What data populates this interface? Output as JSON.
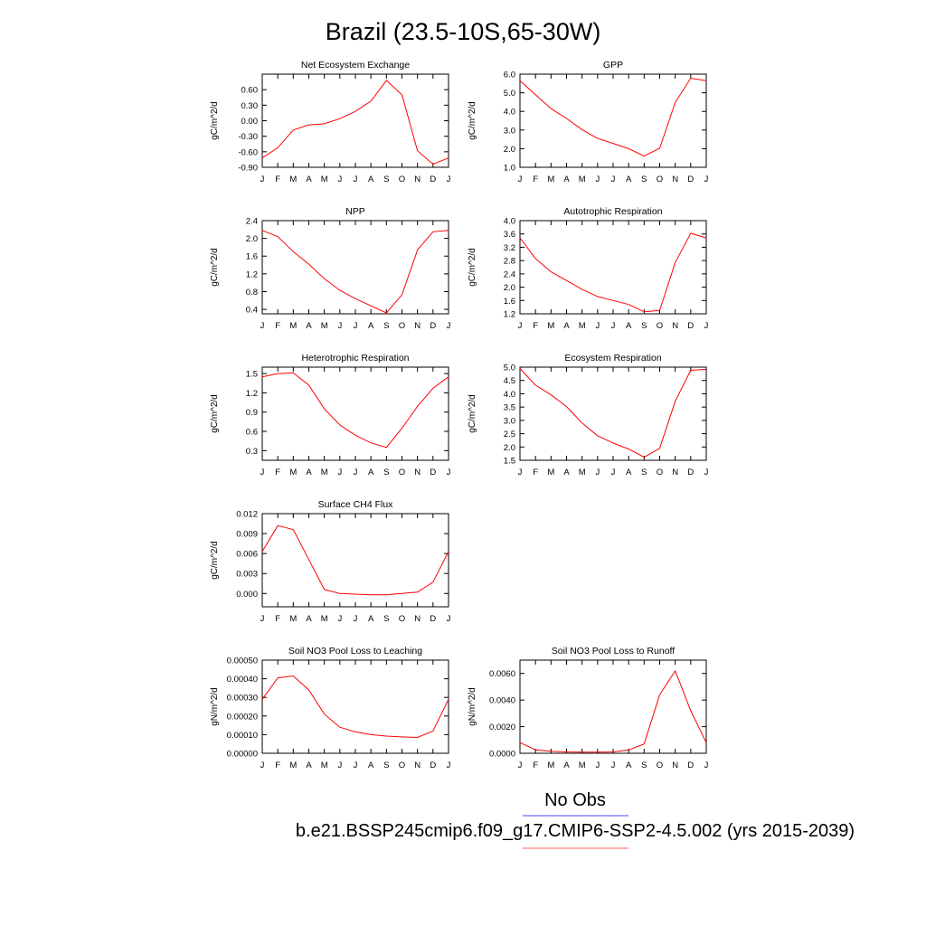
{
  "figure_title": "Brazil (23.5-10S,65-30W)",
  "legend": {
    "items": [
      {
        "label": "No Obs",
        "color": "#6b6bff"
      },
      {
        "label": "b.e21.BSSP245cmip6.f09_g17.CMIP6-SSP2-4.5.002 (yrs 2015-2039)",
        "color": "#ff7f7f"
      }
    ]
  },
  "colors": {
    "series": "#ff0000",
    "axis": "#000000"
  },
  "chart_data": [
    {
      "type": "line",
      "title": "Net Ecosystem Exchange",
      "ylabel": "gC/m^2/d",
      "x": [
        "J",
        "F",
        "M",
        "A",
        "M",
        "J",
        "J",
        "A",
        "S",
        "O",
        "N",
        "D",
        "J"
      ],
      "ylim": [
        -0.9,
        0.9
      ],
      "yticks": [
        -0.9,
        -0.6,
        -0.3,
        0.0,
        0.3,
        0.6
      ],
      "ytick_labels": [
        "-0.90",
        "-0.60",
        "-0.30",
        "0.00",
        "0.30",
        "0.60"
      ],
      "series": [
        {
          "values": [
            -0.72,
            -0.52,
            -0.18,
            -0.08,
            -0.06,
            0.04,
            0.18,
            0.38,
            0.78,
            0.5,
            -0.58,
            -0.84,
            -0.72
          ]
        }
      ]
    },
    {
      "type": "line",
      "title": "GPP",
      "ylabel": "gC/m^2/d",
      "x": [
        "J",
        "F",
        "M",
        "A",
        "M",
        "J",
        "J",
        "A",
        "S",
        "O",
        "N",
        "D",
        "J"
      ],
      "ylim": [
        1.0,
        6.0
      ],
      "yticks": [
        1.0,
        2.0,
        3.0,
        4.0,
        5.0,
        6.0
      ],
      "ytick_labels": [
        "1.0",
        "2.0",
        "3.0",
        "4.0",
        "5.0",
        "6.0"
      ],
      "series": [
        {
          "values": [
            5.65,
            4.9,
            4.15,
            3.62,
            3.02,
            2.55,
            2.28,
            2.0,
            1.6,
            2.02,
            4.48,
            5.78,
            5.65
          ]
        }
      ]
    },
    {
      "type": "line",
      "title": "NPP",
      "ylabel": "gC/m^2/d",
      "x": [
        "J",
        "F",
        "M",
        "A",
        "M",
        "J",
        "J",
        "A",
        "S",
        "O",
        "N",
        "D",
        "J"
      ],
      "ylim": [
        0.3,
        2.4
      ],
      "yticks": [
        0.4,
        0.8,
        1.2,
        1.6,
        2.0,
        2.4
      ],
      "ytick_labels": [
        "0.4",
        "0.8",
        "1.2",
        "1.6",
        "2.0",
        "2.4"
      ],
      "series": [
        {
          "values": [
            2.18,
            2.04,
            1.7,
            1.42,
            1.09,
            0.83,
            0.64,
            0.48,
            0.32,
            0.73,
            1.74,
            2.15,
            2.18
          ]
        }
      ]
    },
    {
      "type": "line",
      "title": "Autotrophic Respiration",
      "ylabel": "gC/m^2/d",
      "x": [
        "J",
        "F",
        "M",
        "A",
        "M",
        "J",
        "J",
        "A",
        "S",
        "O",
        "N",
        "D",
        "J"
      ],
      "ylim": [
        1.2,
        4.0
      ],
      "yticks": [
        1.2,
        1.6,
        2.0,
        2.4,
        2.8,
        3.2,
        3.6,
        4.0
      ],
      "ytick_labels": [
        "1.2",
        "1.6",
        "2.0",
        "2.4",
        "2.8",
        "3.2",
        "3.6",
        "4.0"
      ],
      "series": [
        {
          "values": [
            3.48,
            2.86,
            2.46,
            2.2,
            1.93,
            1.72,
            1.6,
            1.48,
            1.26,
            1.3,
            2.74,
            3.62,
            3.48
          ]
        }
      ]
    },
    {
      "type": "line",
      "title": "Heterotrophic Respiration",
      "ylabel": "gC/m^2/d",
      "x": [
        "J",
        "F",
        "M",
        "A",
        "M",
        "J",
        "J",
        "A",
        "S",
        "O",
        "N",
        "D",
        "J"
      ],
      "ylim": [
        0.15,
        1.6
      ],
      "yticks": [
        0.3,
        0.6,
        0.9,
        1.2,
        1.5
      ],
      "ytick_labels": [
        "0.3",
        "0.6",
        "0.9",
        "1.2",
        "1.5"
      ],
      "series": [
        {
          "values": [
            1.45,
            1.5,
            1.51,
            1.32,
            0.95,
            0.7,
            0.54,
            0.42,
            0.35,
            0.65,
            0.99,
            1.27,
            1.45
          ]
        }
      ]
    },
    {
      "type": "line",
      "title": "Ecosystem Respiration",
      "ylabel": "gC/m^2/d",
      "x": [
        "J",
        "F",
        "M",
        "A",
        "M",
        "J",
        "J",
        "A",
        "S",
        "O",
        "N",
        "D",
        "J"
      ],
      "ylim": [
        1.5,
        5.0
      ],
      "yticks": [
        1.5,
        2.0,
        2.5,
        3.0,
        3.5,
        4.0,
        4.5,
        5.0
      ],
      "ytick_labels": [
        "1.5",
        "2.0",
        "2.5",
        "3.0",
        "3.5",
        "4.0",
        "4.5",
        "5.0"
      ],
      "series": [
        {
          "values": [
            4.95,
            4.32,
            3.96,
            3.52,
            2.9,
            2.42,
            2.15,
            1.92,
            1.62,
            1.95,
            3.72,
            4.88,
            4.92
          ]
        }
      ]
    },
    {
      "type": "line",
      "title": "Surface CH4 Flux",
      "ylabel": "gC/m^2/d",
      "x": [
        "J",
        "F",
        "M",
        "A",
        "M",
        "J",
        "J",
        "A",
        "S",
        "O",
        "N",
        "D",
        "J"
      ],
      "ylim": [
        -0.002,
        0.012
      ],
      "yticks": [
        0.0,
        0.003,
        0.006,
        0.009,
        0.012
      ],
      "ytick_labels": [
        "0.000",
        "0.003",
        "0.006",
        "0.009",
        "0.012"
      ],
      "series": [
        {
          "values": [
            0.0063,
            0.0102,
            0.0096,
            0.0051,
            0.0006,
            0.0,
            -0.0001,
            -0.0002,
            -0.0002,
            0.0,
            0.0002,
            0.0017,
            0.0063
          ]
        }
      ]
    },
    {
      "type": "line",
      "title": "Soil NO3 Pool Loss to Leaching",
      "ylabel": "gN/m^2/d",
      "x": [
        "J",
        "F",
        "M",
        "A",
        "M",
        "J",
        "J",
        "A",
        "S",
        "O",
        "N",
        "D",
        "J"
      ],
      "ylim": [
        0.0,
        0.0005
      ],
      "yticks": [
        0.0,
        0.0001,
        0.0002,
        0.0003,
        0.0004,
        0.0005
      ],
      "ytick_labels": [
        "0.00000",
        "0.00010",
        "0.00020",
        "0.00030",
        "0.00040",
        "0.00050"
      ],
      "series": [
        {
          "values": [
            0.00029,
            0.000405,
            0.000415,
            0.00034,
            0.00021,
            0.00014,
            0.000115,
            0.0001,
            9.2e-05,
            8.8e-05,
            8.5e-05,
            0.00012,
            0.00029
          ]
        }
      ]
    },
    {
      "type": "line",
      "title": "Soil NO3 Pool Loss to Runoff",
      "ylabel": "gN/m^2/d",
      "x": [
        "J",
        "F",
        "M",
        "A",
        "M",
        "J",
        "J",
        "A",
        "S",
        "O",
        "N",
        "D",
        "J"
      ],
      "ylim": [
        0.0,
        0.007
      ],
      "yticks": [
        0.0,
        0.002,
        0.004,
        0.006
      ],
      "ytick_labels": [
        "0.0000",
        "0.0020",
        "0.0040",
        "0.0060"
      ],
      "series": [
        {
          "values": [
            0.0008,
            0.00025,
            0.00015,
            0.0001,
            8e-05,
            8e-05,
            0.0001,
            0.00025,
            0.0007,
            0.0044,
            0.0062,
            0.0032,
            0.0008
          ]
        }
      ]
    }
  ]
}
